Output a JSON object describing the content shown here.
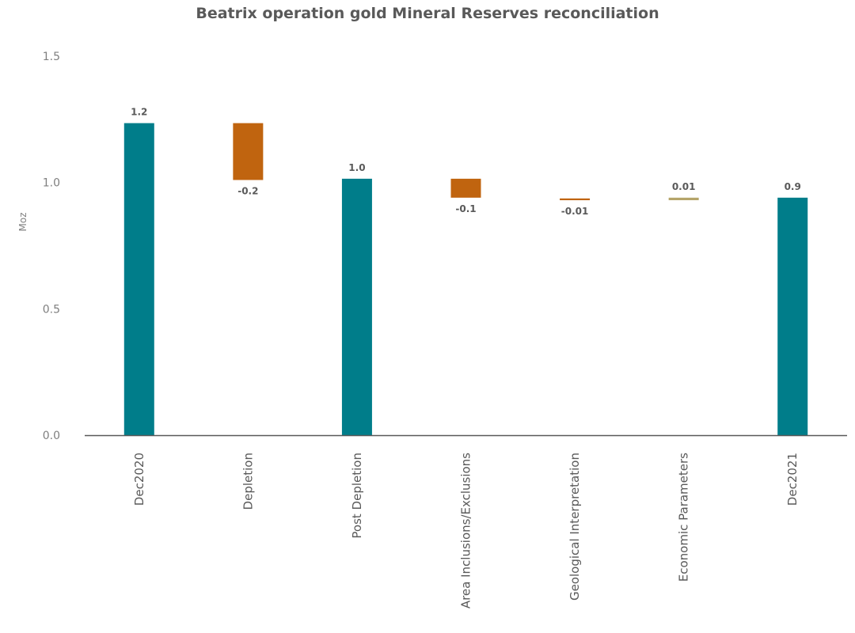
{
  "chart_data": {
    "type": "bar",
    "subtype": "waterfall",
    "title": "Beatrix operation gold Mineral Reserves reconciliation",
    "xlabel": "",
    "ylabel": "Moz",
    "ylim": [
      0,
      1.5
    ],
    "yticks": [
      "0.0",
      "0.5",
      "1.0",
      "1.5"
    ],
    "grid": false,
    "legend": "none",
    "categories": [
      "Dec2020",
      "Depletion",
      "Post Depletion",
      "Area Inclusions/Exclusions",
      "Geological Interpretation",
      "Economic Parameters",
      "Dec2021"
    ],
    "bars": [
      {
        "kind": "total",
        "base": 0,
        "top": 1.235,
        "label": "1.2"
      },
      {
        "kind": "decrease",
        "base": 1.01,
        "top": 1.235,
        "label": "-0.2"
      },
      {
        "kind": "total",
        "base": 0,
        "top": 1.015,
        "label": "1.0"
      },
      {
        "kind": "decrease",
        "base": 0.94,
        "top": 1.015,
        "label": "-0.1"
      },
      {
        "kind": "decrease",
        "base": 0.93,
        "top": 0.937,
        "label": "-0.01"
      },
      {
        "kind": "increase",
        "base": 0.93,
        "top": 0.94,
        "label": "0.01"
      },
      {
        "kind": "total",
        "base": 0,
        "top": 0.94,
        "label": "0.9"
      }
    ],
    "colors": {
      "total": "#007d8a",
      "decrease": "#c0640f",
      "increase": "#b5a56a",
      "axis": "#595959"
    }
  }
}
